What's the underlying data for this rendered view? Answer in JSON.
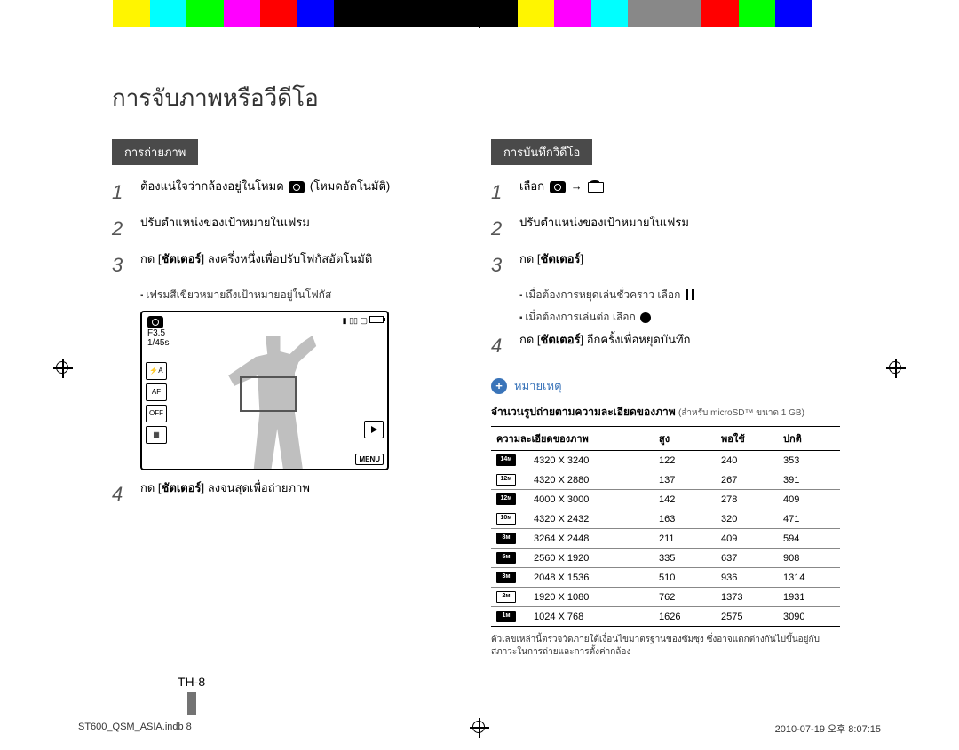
{
  "title": "การจับภาพหรือวีดีโอ",
  "pageNum": "TH-8",
  "footer": {
    "file": "ST600_QSM_ASIA.indb   8",
    "date": "2010-07-19   오후 8:07:15"
  },
  "colorbar": [
    "#ffffff",
    "#fff500",
    "#00ffff",
    "#00ff00",
    "#ff00ff",
    "#ff0000",
    "#0000ff",
    "#000000",
    "#000000",
    "#000000",
    "#000000",
    "#000000",
    "#fff500",
    "#ff00ff",
    "#00ffff",
    "#888888",
    "#888888",
    "#ff0000",
    "#00ff00",
    "#0000ff",
    "#ffffff"
  ],
  "left": {
    "tab": "การถ่ายภาพ",
    "s1": {
      "a": "ต้องแน่ใจว่ากล้องอยู่ในโหมด ",
      "b": " (โหมดอัตโนมัติ)"
    },
    "s2": "ปรับตำแหน่งของเป้าหมายในเฟรม",
    "s3": {
      "a": "กด [",
      "b": "ชัตเตอร์",
      "c": "] ลงครึ่งหนึ่งเพื่อปรับโฟกัสอัตโนมัติ"
    },
    "s3sub": "เฟรมสีเขียวหมายถึงเป้าหมายอยู่ในโฟกัส",
    "s4": {
      "a": "กด [",
      "b": "ชัตเตอร์",
      "c": "] ลงจนสุดเพื่อถ่ายภาพ"
    },
    "lcd": {
      "f": "F3.5",
      "sp": "1/45s",
      "menu": "MENU"
    }
  },
  "right": {
    "tab": "การบันทึกวิดีโอ",
    "s1": "เลือก ",
    "s2": "ปรับตำแหน่งของเป้าหมายในเฟรม",
    "s3": {
      "a": "กด [",
      "b": "ชัตเตอร์",
      "c": "]"
    },
    "s3a": "เมื่อต้องการหยุดเล่นชั่วคราว เลือก ",
    "s3b": "เมื่อต้องการเล่นต่อ เลือก ",
    "s4": {
      "a": "กด [",
      "b": "ชัตเตอร์",
      "c": "] อีกครั้งเพื่อหยุดบันทึก"
    },
    "note": "หมายเหตุ",
    "caption": "จำนวนรูปถ่ายตามความละเอียดของภาพ",
    "captionSmall": "(สำหรับ microSD™ ขนาด 1 GB)",
    "headers": [
      "ความละเอียดของภาพ",
      "สูง",
      "พอใช้",
      "ปกติ"
    ],
    "rows": [
      {
        "ico": "14м",
        "f": true,
        "res": "4320 X 3240",
        "h": "122",
        "m": "240",
        "n": "353"
      },
      {
        "ico": "12м",
        "f": false,
        "res": "4320 X 2880",
        "h": "137",
        "m": "267",
        "n": "391"
      },
      {
        "ico": "12м",
        "f": true,
        "res": "4000 X 3000",
        "h": "142",
        "m": "278",
        "n": "409"
      },
      {
        "ico": "10м",
        "f": false,
        "res": "4320 X 2432",
        "h": "163",
        "m": "320",
        "n": "471"
      },
      {
        "ico": "8м",
        "f": true,
        "res": "3264 X 2448",
        "h": "211",
        "m": "409",
        "n": "594"
      },
      {
        "ico": "5м",
        "f": true,
        "res": "2560 X 1920",
        "h": "335",
        "m": "637",
        "n": "908"
      },
      {
        "ico": "3м",
        "f": true,
        "res": "2048 X 1536",
        "h": "510",
        "m": "936",
        "n": "1314"
      },
      {
        "ico": "2м",
        "f": false,
        "res": "1920 X 1080",
        "h": "762",
        "m": "1373",
        "n": "1931"
      },
      {
        "ico": "1м",
        "f": true,
        "res": "1024 X 768",
        "h": "1626",
        "m": "2575",
        "n": "3090"
      }
    ],
    "foot": "ตัวเลขเหล่านี้ตรวจวัดภายใต้เงื่อนไขมาตรฐานของซัมซุง ซึ่งอาจแตกต่างกันไปขึ้นอยู่กับสภาวะในการถ่ายและการตั้งค่ากล้อง"
  }
}
